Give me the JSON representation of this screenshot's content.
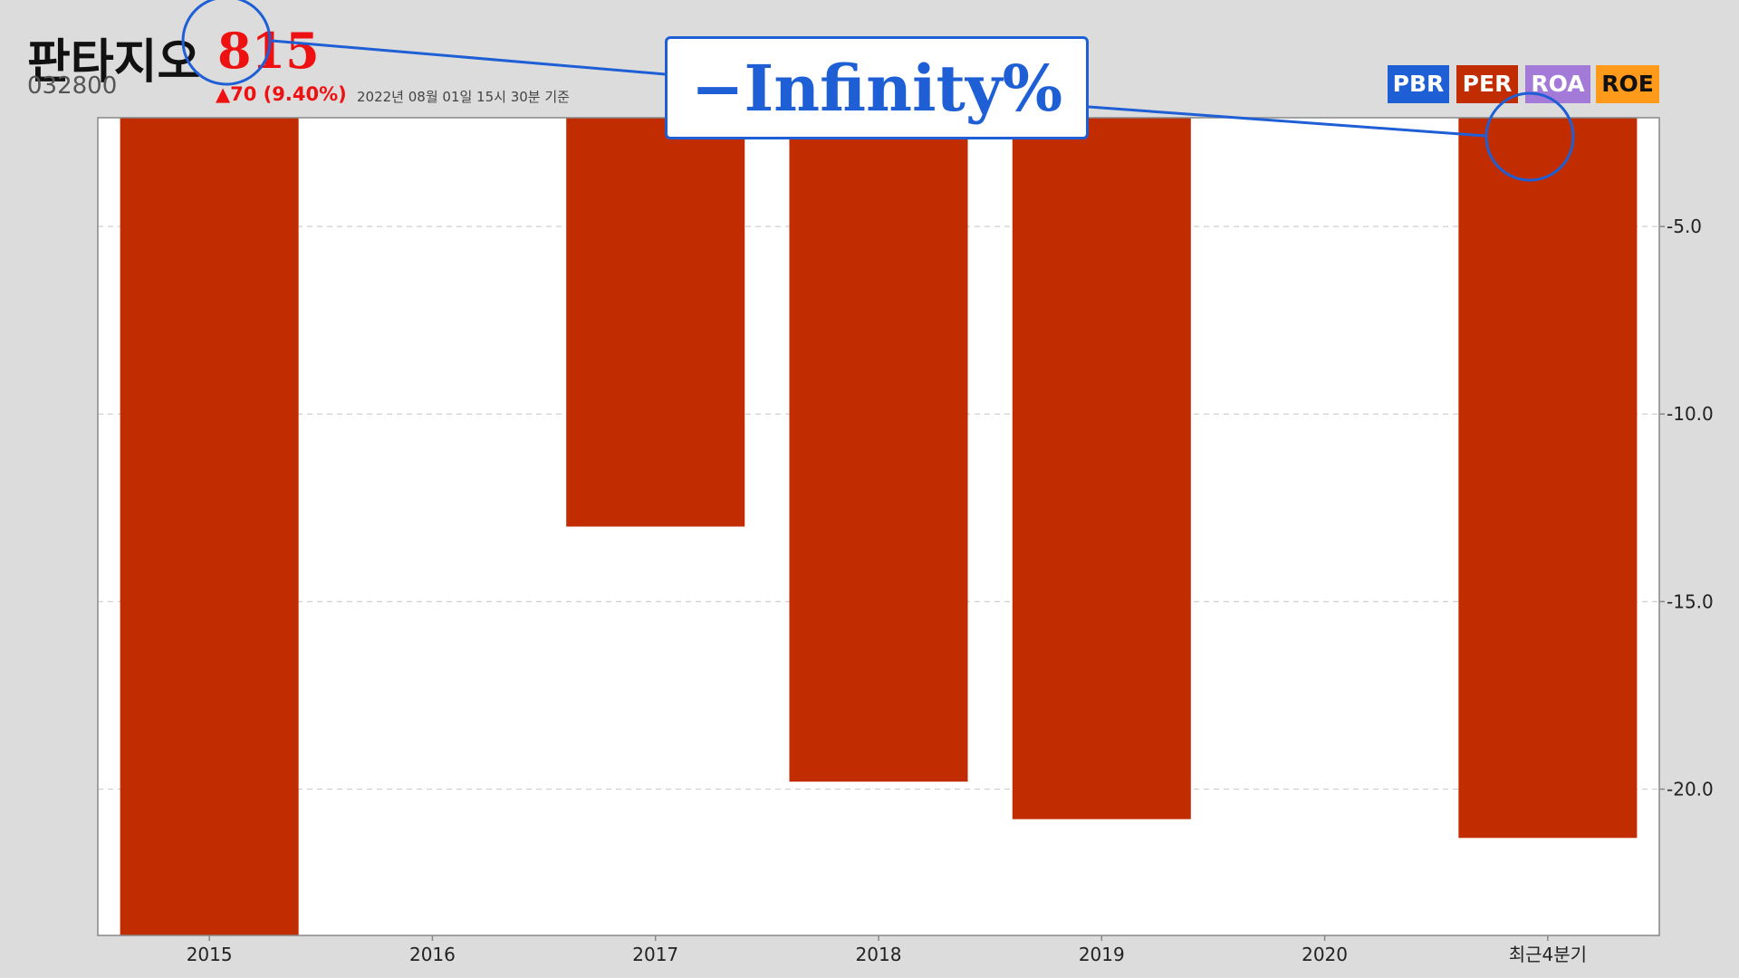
{
  "header": {
    "company_name": "판타지오",
    "price": "815",
    "stock_code": "032800",
    "change": "▲70 (9.40%)",
    "basis_time": "2022년 08월 01일 15시 30분 기준"
  },
  "legend": {
    "pbr": "PBR",
    "per": "PER",
    "roa": "ROA",
    "roe": "ROE"
  },
  "callout": {
    "text": "−Infinity%"
  },
  "colors": {
    "per": "#c12d00",
    "pbr": "#1f5fd6",
    "roa": "#a37ad8",
    "roe": "#ff9a1a",
    "accent": "#1f5fd6"
  },
  "chart_data": {
    "type": "bar",
    "categories": [
      "2015",
      "2016",
      "2017",
      "2018",
      "2019",
      "2020",
      "최근4분기"
    ],
    "series": [
      {
        "name": "PER",
        "values": [
          -24.0,
          null,
          -13.0,
          -19.8,
          -20.8,
          null,
          -21.3
        ]
      }
    ],
    "ylim": [
      -23.9,
      -2.1
    ],
    "yticks": [
      -5.0,
      -10.0,
      -15.0,
      -20.0
    ],
    "ytick_labels": [
      "-5.0",
      "-10.0",
      "-15.0",
      "-20.0"
    ],
    "y_axis_side": "right",
    "grid": "horizontal dashed"
  }
}
